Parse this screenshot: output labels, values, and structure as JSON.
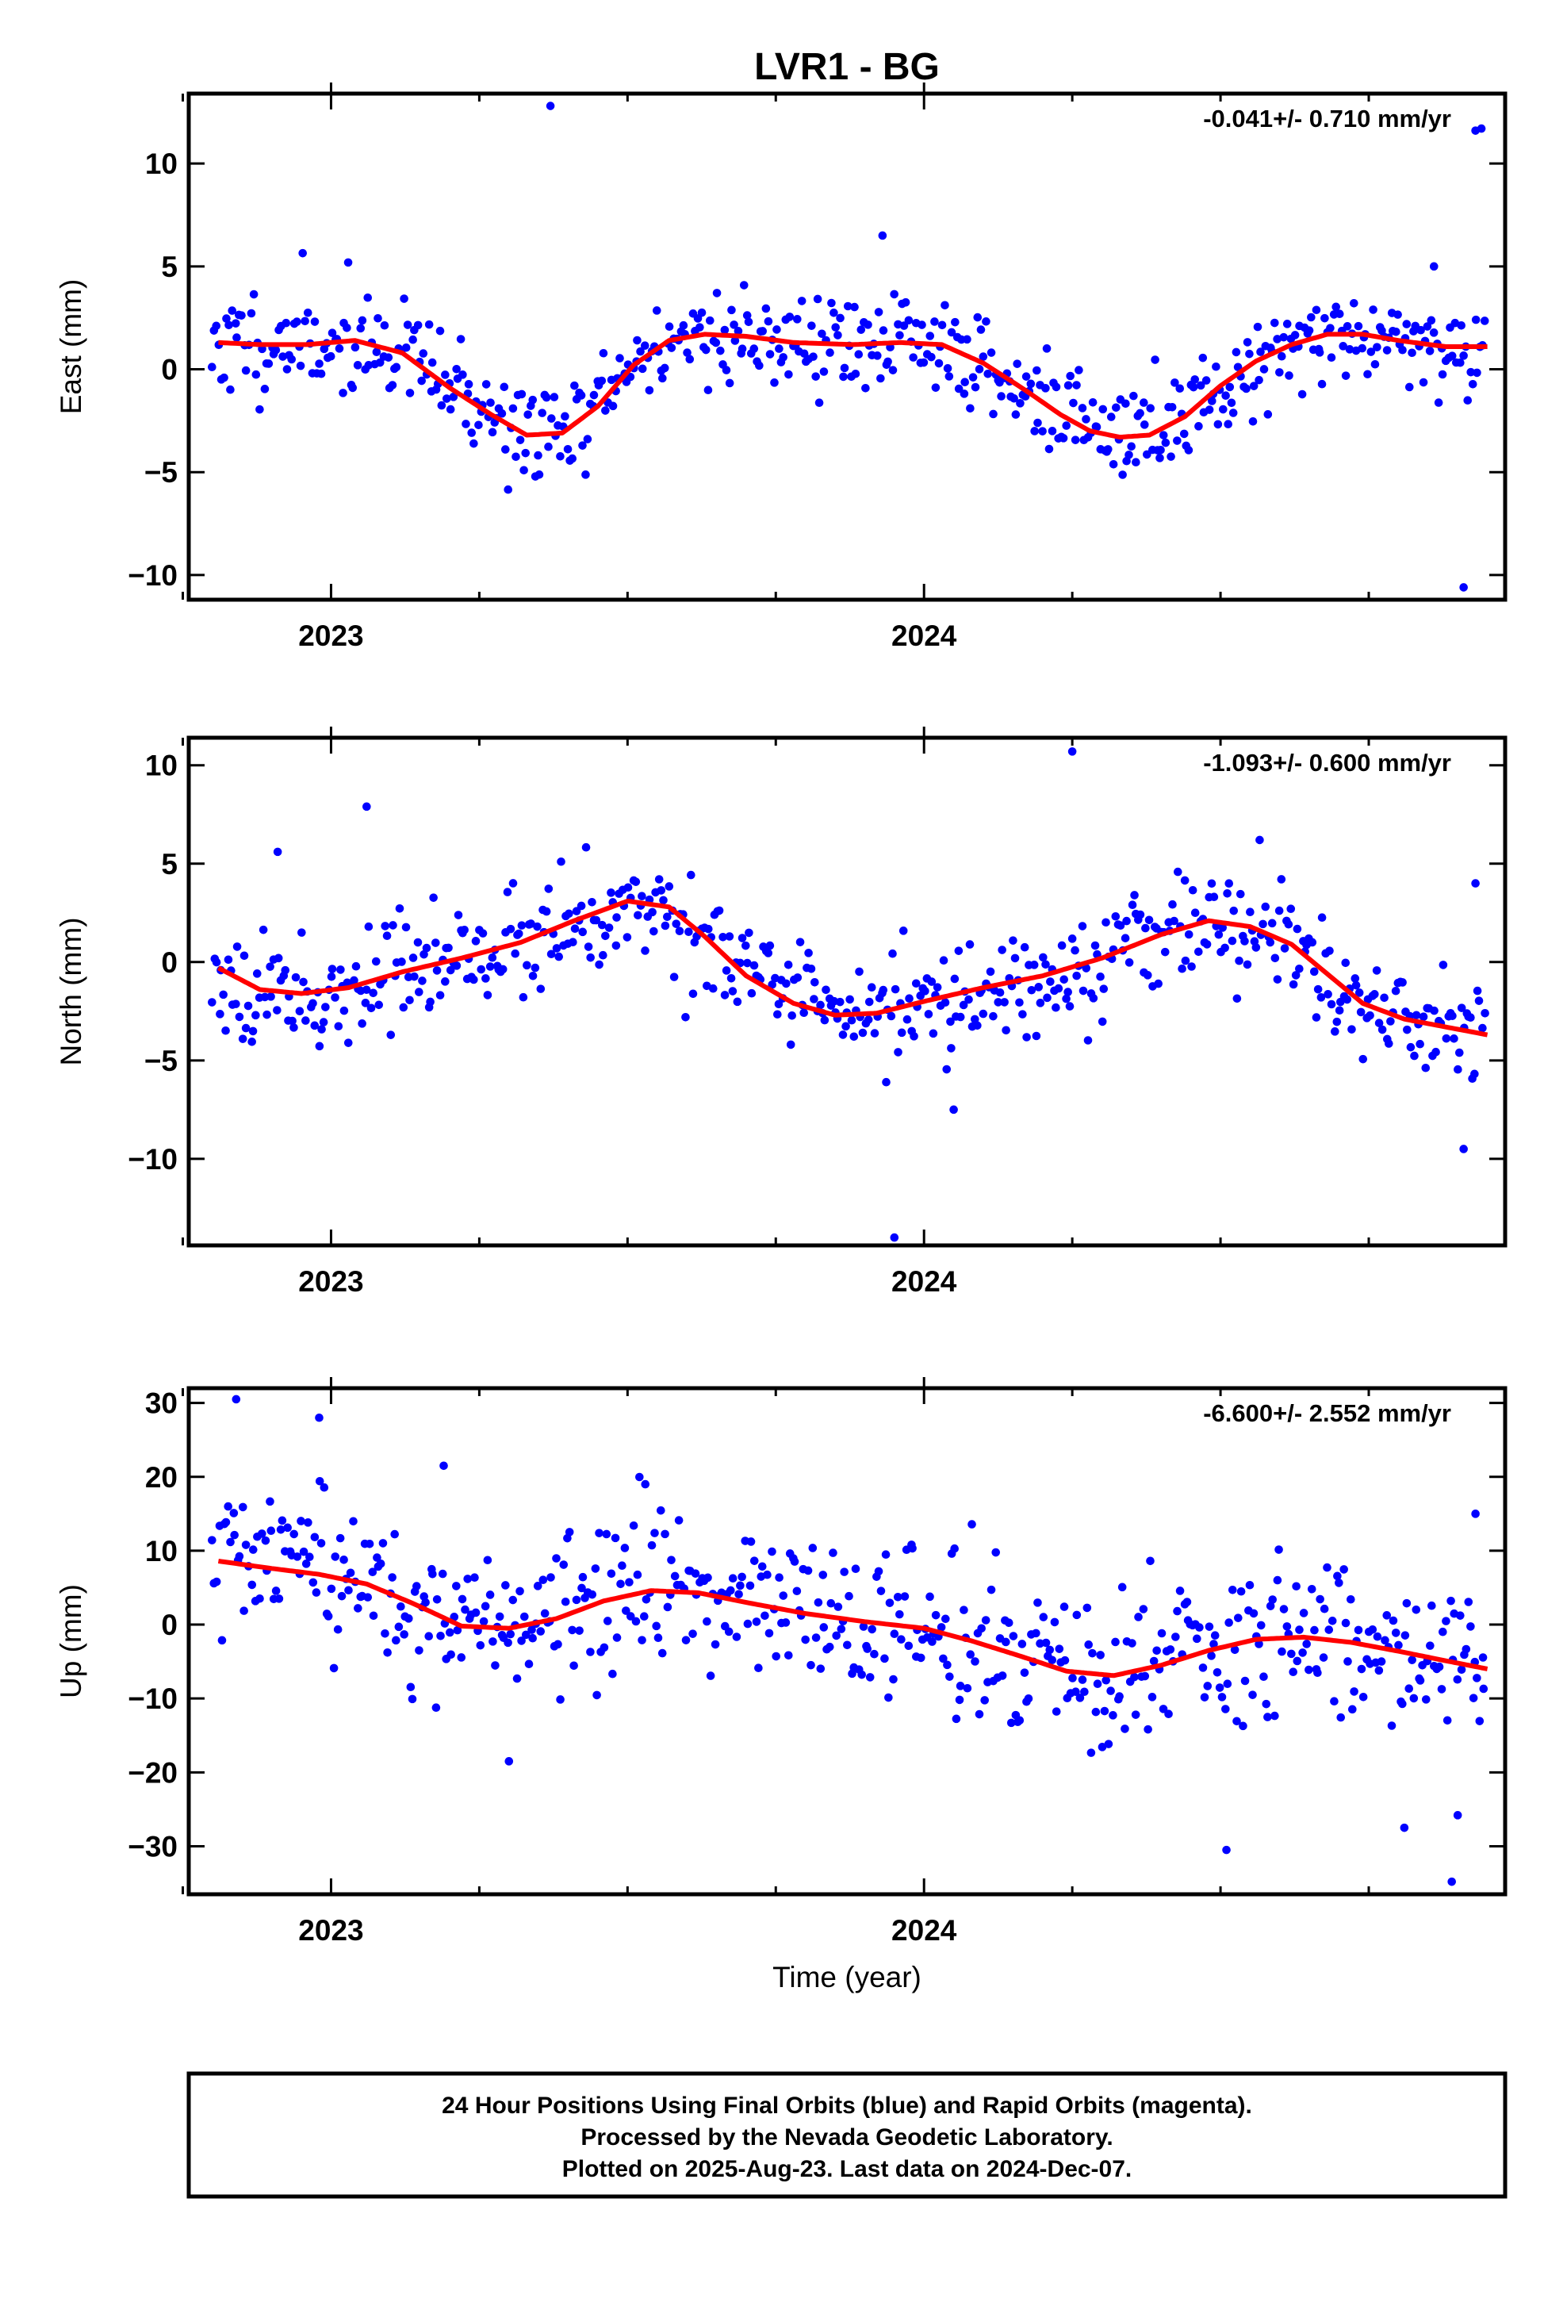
{
  "figure": {
    "title": "LVR1 - BG",
    "xlabel": "Time (year)"
  },
  "caption": {
    "line1": "24 Hour Positions Using Final Orbits (blue) and Rapid Orbits (magenta).",
    "line2": "Processed by the Nevada Geodetic Laboratory.",
    "line3": "Plotted on 2025-Aug-23. Last data on 2024-Dec-07."
  },
  "colors": {
    "points": "#0000ff",
    "fit": "#ff0000",
    "frame": "#000000"
  },
  "chart_data": [
    {
      "type": "scatter",
      "name": "east",
      "ylabel": "East (mm)",
      "rate_text": "-0.041+/- 0.710 mm/yr",
      "xlim": [
        2022.76,
        2024.98
      ],
      "ylim": [
        -11.2,
        13.4
      ],
      "xticks": [
        2023,
        2024
      ],
      "xtick_labels": [
        "2023",
        "2024"
      ],
      "yticks": [
        10,
        5,
        0,
        -5,
        -10
      ],
      "ytick_labels": [
        "10",
        "5",
        "0",
        "−10"
      ],
      "ytick_labels_full": [
        "10",
        "5",
        "0",
        "−5",
        "−10"
      ],
      "fit_x": [
        2022.81,
        2022.88,
        2022.96,
        2023.04,
        2023.12,
        2023.2,
        2023.27,
        2023.33,
        2023.39,
        2023.45,
        2023.51,
        2023.57,
        2023.63,
        2023.7,
        2023.78,
        2023.88,
        2023.96,
        2024.03,
        2024.1,
        2024.17,
        2024.23,
        2024.28,
        2024.33,
        2024.38,
        2024.44,
        2024.5,
        2024.56,
        2024.62,
        2024.68,
        2024.74,
        2024.8,
        2024.88,
        2024.95
      ],
      "fit_y": [
        1.3,
        1.2,
        1.2,
        1.4,
        0.8,
        -0.9,
        -2.2,
        -3.2,
        -3.1,
        -1.8,
        0.2,
        1.4,
        1.7,
        1.6,
        1.3,
        1.2,
        1.3,
        1.2,
        0.3,
        -1.0,
        -2.2,
        -3.0,
        -3.3,
        -3.2,
        -2.3,
        -0.8,
        0.4,
        1.2,
        1.7,
        1.7,
        1.4,
        1.1,
        1.1
      ],
      "outliers": [
        [
          2023.37,
          12.8
        ],
        [
          2024.93,
          11.6
        ],
        [
          2024.94,
          11.7
        ],
        [
          2024.91,
          -10.6
        ],
        [
          2023.93,
          6.5
        ],
        [
          2024.86,
          5.0
        ]
      ],
      "seed": 11,
      "noise": 1.25,
      "n_points": 560
    },
    {
      "type": "scatter",
      "name": "north",
      "ylabel": "North (mm)",
      "rate_text": "-1.093+/- 0.600 mm/yr",
      "xlim": [
        2022.76,
        2024.98
      ],
      "ylim": [
        -14.4,
        11.4
      ],
      "xticks": [
        2023,
        2024
      ],
      "xtick_labels": [
        "2023",
        "2024"
      ],
      "yticks": [
        10,
        5,
        0,
        -5,
        -10
      ],
      "ytick_labels_full": [
        "10",
        "5",
        "0",
        "−5",
        "−10"
      ],
      "fit_x": [
        2022.81,
        2022.88,
        2022.95,
        2023.03,
        2023.12,
        2023.22,
        2023.32,
        2023.41,
        2023.5,
        2023.57,
        2023.63,
        2023.7,
        2023.78,
        2023.85,
        2023.92,
        2024.0,
        2024.1,
        2024.2,
        2024.3,
        2024.4,
        2024.48,
        2024.55,
        2024.62,
        2024.68,
        2024.74,
        2024.81,
        2024.88,
        2024.95
      ],
      "fit_y": [
        -0.3,
        -1.4,
        -1.6,
        -1.3,
        -0.5,
        0.2,
        1.0,
        2.1,
        3.1,
        2.8,
        1.3,
        -0.7,
        -2.1,
        -2.7,
        -2.6,
        -2.0,
        -1.3,
        -0.7,
        0.2,
        1.4,
        2.1,
        1.8,
        0.9,
        -0.6,
        -2.1,
        -2.9,
        -3.3,
        -3.7
      ],
      "outliers": [
        [
          2024.25,
          10.7
        ],
        [
          2023.06,
          7.9
        ],
        [
          2022.91,
          5.6
        ],
        [
          2023.95,
          -14.0
        ],
        [
          2024.91,
          -9.5
        ],
        [
          2024.93,
          4.0
        ],
        [
          2024.05,
          -7.5
        ]
      ],
      "seed": 23,
      "noise": 1.35,
      "n_points": 560
    },
    {
      "type": "scatter",
      "name": "up",
      "ylabel": "Up (mm)",
      "rate_text": "-6.600+/- 2.552 mm/yr",
      "xlim": [
        2022.76,
        2024.98
      ],
      "ylim": [
        -36.5,
        32.0
      ],
      "xticks": [
        2023,
        2024
      ],
      "xtick_labels": [
        "2023",
        "2024"
      ],
      "yticks": [
        30,
        20,
        10,
        0,
        -10,
        -20,
        -30
      ],
      "ytick_labels_full": [
        "30",
        "20",
        "10",
        "0",
        "−10",
        "−20",
        "−30"
      ],
      "fit_x": [
        2022.81,
        2022.9,
        2022.98,
        2023.06,
        2023.14,
        2023.22,
        2023.3,
        2023.38,
        2023.46,
        2023.54,
        2023.62,
        2023.7,
        2023.8,
        2023.9,
        2024.0,
        2024.08,
        2024.16,
        2024.24,
        2024.32,
        2024.4,
        2024.48,
        2024.56,
        2024.64,
        2024.72,
        2024.8,
        2024.88,
        2024.95
      ],
      "fit_y": [
        8.6,
        7.6,
        6.8,
        5.5,
        2.8,
        -0.2,
        -0.5,
        0.8,
        3.2,
        4.6,
        4.3,
        3.0,
        1.5,
        0.4,
        -0.5,
        -2.2,
        -4.2,
        -6.3,
        -6.9,
        -5.5,
        -3.5,
        -2.0,
        -1.7,
        -2.4,
        -3.6,
        -4.9,
        -6.0
      ],
      "outliers": [
        [
          2022.84,
          30.5
        ],
        [
          2022.98,
          28.0
        ],
        [
          2023.19,
          21.5
        ],
        [
          2024.51,
          -30.5
        ],
        [
          2024.89,
          -34.8
        ],
        [
          2024.81,
          -27.5
        ],
        [
          2023.3,
          -18.5
        ],
        [
          2023.53,
          19.0
        ],
        [
          2024.93,
          15.0
        ],
        [
          2024.9,
          -25.8
        ]
      ],
      "seed": 37,
      "noise": 5.2,
      "n_points": 560
    }
  ]
}
